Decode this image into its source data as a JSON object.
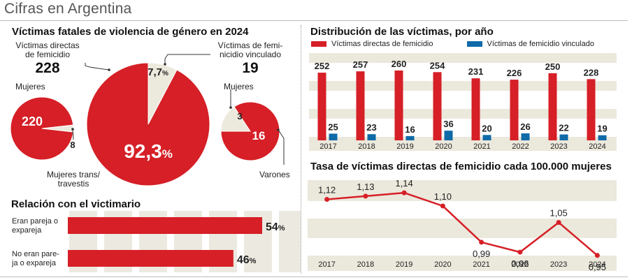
{
  "header": {
    "title": "Cifras en Argentina"
  },
  "colors": {
    "red": "#d61f26",
    "blue": "#0f6aa8",
    "band": "#ebe8dc",
    "slice": "#ece9dd"
  },
  "victims": {
    "title": "Víctimas fatales de violencia de género en 2024",
    "direct_label_1": "Víctimas directas",
    "direct_label_2": "de femicidio",
    "direct_total": "228",
    "linked_label_1": "Víctimas de femi-",
    "linked_label_2": "nicidio vinculado",
    "linked_total": "19",
    "big_pct_main": "92,3",
    "big_pct_unit": "%",
    "small_pct_main": "7,7",
    "small_pct_unit": "%",
    "left_women_label": "Mujeres",
    "left_women_value": "220",
    "left_trans_value": "8",
    "left_trans_label_1": "Mujeres trans/",
    "left_trans_label_2": "travestis",
    "right_women_label": "Mujeres",
    "right_women_value": "3",
    "right_men_value": "16",
    "right_men_label": "Varones"
  },
  "relation": {
    "title": "Relación con el victimario",
    "rows": [
      {
        "label_1": "Eran pareja o",
        "label_2": "expareja",
        "pct": "54",
        "unit": "%"
      },
      {
        "label_1": "No eran pare-",
        "label_2": "ja o expareja",
        "pct": "46",
        "unit": "%"
      }
    ]
  },
  "distribution": {
    "title": "Distribución de las víctimas, por año",
    "legend_direct": "Víctimas directas de femicidio",
    "legend_linked": "Víctimas de femicidio vinculado"
  },
  "rate": {
    "title": "Tasa de víctimas directas de femicidio cada 100.000 mujeres"
  },
  "chart_data": [
    {
      "type": "pie",
      "categories": [
        "Víctimas directas de femicidio",
        "Víctimas de femicidio vinculado"
      ],
      "values": [
        92.3,
        7.7
      ]
    },
    {
      "type": "pie",
      "categories": [
        "Mujeres",
        "Mujeres trans/travestis"
      ],
      "values": [
        220,
        8
      ]
    },
    {
      "type": "pie",
      "categories": [
        "Mujeres",
        "Varones"
      ],
      "values": [
        3,
        16
      ]
    },
    {
      "type": "bar",
      "categories": [
        "Eran pareja o expareja",
        "No eran pareja o expareja"
      ],
      "values": [
        54,
        46
      ],
      "xlim": [
        0,
        100
      ]
    },
    {
      "type": "bar",
      "categories": [
        "2017",
        "2018",
        "2019",
        "2020",
        "2021",
        "2022",
        "2023",
        "2024"
      ],
      "series": [
        {
          "name": "Víctimas directas de femicidio",
          "values": [
            252,
            257,
            260,
            254,
            231,
            226,
            250,
            228
          ]
        },
        {
          "name": "Víctimas de femicidio vinculado",
          "values": [
            25,
            23,
            16,
            36,
            20,
            26,
            22,
            19
          ]
        }
      ],
      "labels_direct": [
        "252",
        "257",
        "260",
        "254",
        "231",
        "226",
        "250",
        "228"
      ],
      "labels_linked": [
        "25",
        "23",
        "16",
        "36",
        "20",
        "26",
        "22",
        "19"
      ],
      "ylim": [
        0,
        300
      ]
    },
    {
      "type": "line",
      "x": [
        "2017",
        "2018",
        "2019",
        "2020",
        "2021",
        "2022",
        "2023",
        "2024"
      ],
      "values": [
        1.12,
        1.13,
        1.14,
        1.1,
        0.99,
        0.96,
        1.05,
        0.95
      ],
      "labels": [
        "1,12",
        "1,13",
        "1,14",
        "1,10",
        "0,99",
        "0,96",
        "1,05",
        "0,95"
      ],
      "ylim": [
        0.9,
        1.2
      ]
    }
  ]
}
